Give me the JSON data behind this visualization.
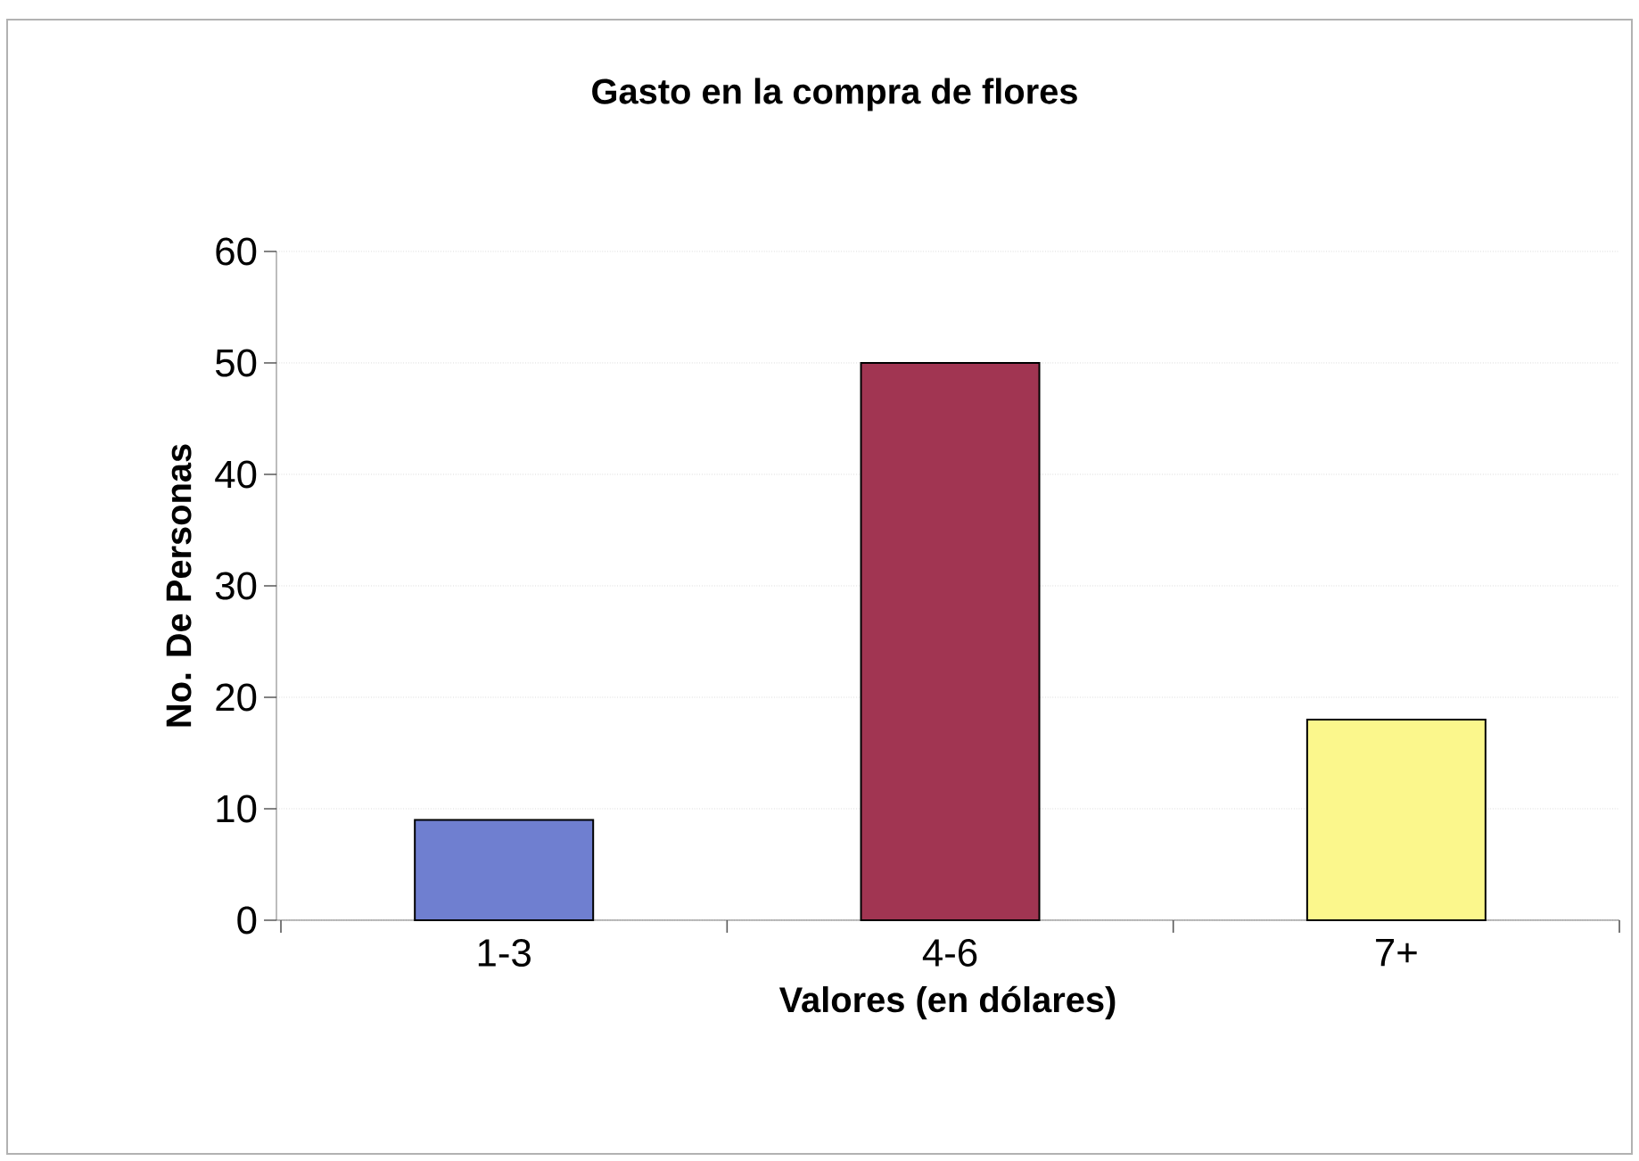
{
  "chart_data": {
    "type": "bar",
    "title": "Gasto en la compra de flores",
    "xlabel": "Valores (en dólares)",
    "ylabel": "No. De Personas",
    "categories": [
      "1-3",
      "4-6",
      "7+"
    ],
    "values": [
      9,
      50,
      18
    ],
    "colors": [
      "#6f7fd0",
      "#a13552",
      "#fbf78c"
    ],
    "ylim": [
      0,
      60
    ],
    "yticks": [
      0,
      10,
      20,
      30,
      40,
      50,
      60
    ],
    "grid": "y"
  }
}
